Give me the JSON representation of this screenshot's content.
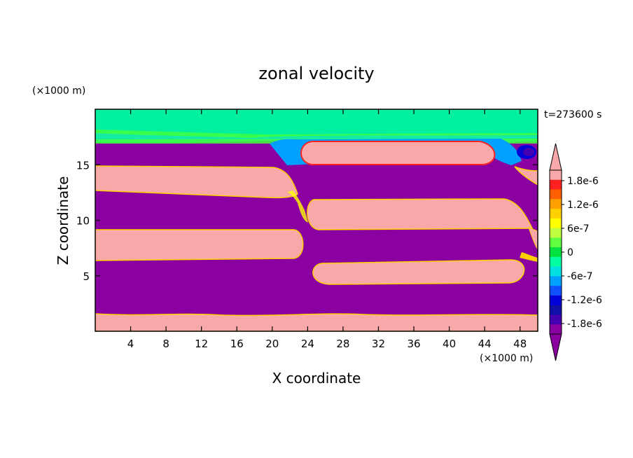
{
  "chart_data": {
    "type": "heatmap",
    "title": "zonal velocity",
    "xlabel": "X coordinate",
    "ylabel": "Z coordinate",
    "x_unit": "(×1000 m)",
    "y_unit": "(×1000 m)",
    "time_label": "t=273600 s",
    "xlim": [
      0,
      50
    ],
    "ylim": [
      0,
      20
    ],
    "x_ticks": [
      4,
      8,
      12,
      16,
      20,
      24,
      28,
      32,
      36,
      40,
      44,
      48
    ],
    "x_tick_labels": [
      "4",
      "8",
      "12",
      "16",
      "20",
      "24",
      "28",
      "32",
      "36",
      "40",
      "44",
      "48"
    ],
    "y_ticks": [
      5,
      10,
      15
    ],
    "y_tick_labels": [
      "5",
      "10",
      "15"
    ],
    "colorbar": {
      "colors": [
        "#8b00a0",
        "#4400b0",
        "#1010a8",
        "#0000d8",
        "#1050ff",
        "#00a0ff",
        "#00e0e0",
        "#00ffa0",
        "#00e040",
        "#60ff40",
        "#c0ff40",
        "#ffff00",
        "#ffd000",
        "#ffa000",
        "#ff6000",
        "#ff2020",
        "#f8a8a8"
      ],
      "low_color": "#8b00a0",
      "high_color": "#f8a8a8",
      "tick_labels": [
        "1.8e-6",
        "1.2e-6",
        "6e-7",
        "0",
        "-6e-7",
        "-1.2e-6",
        "-1.8e-6"
      ]
    },
    "regions": {
      "background_color": "#8b00a0",
      "positive_color": "#f8a8a8",
      "top_layer_color": "#00f0a0",
      "top_layer_inner_color": "#40ff40",
      "edge_color": "#ffd000",
      "positive_jets_x_range": [
        {
          "name": "bottom-layer",
          "x": [
            0,
            50
          ],
          "z": [
            0,
            1.4
          ]
        },
        {
          "name": "left-jet-low",
          "x": [
            0,
            23
          ],
          "z": [
            6.4,
            9.2
          ]
        },
        {
          "name": "left-jet-high",
          "x": [
            0,
            22
          ],
          "z": [
            12.2,
            14.9
          ]
        },
        {
          "name": "right-jet-low",
          "x": [
            24.5,
            47
          ],
          "z": [
            4.2,
            6.3
          ]
        },
        {
          "name": "right-jet-mid",
          "x": [
            24,
            49.5
          ],
          "z": [
            9.1,
            11.9
          ]
        },
        {
          "name": "right-jet-high",
          "x": [
            23,
            46
          ],
          "z": [
            15,
            17
          ]
        }
      ]
    }
  }
}
